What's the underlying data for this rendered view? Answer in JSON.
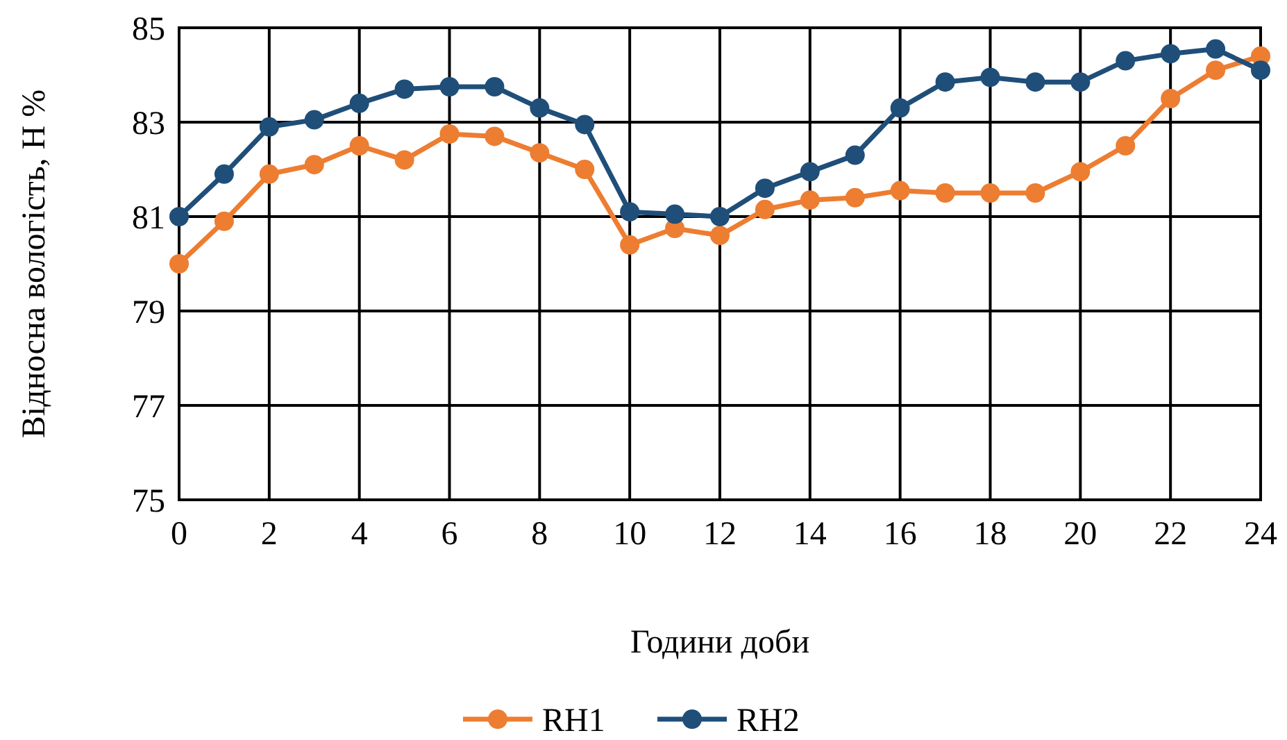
{
  "chart_data": {
    "type": "line",
    "xlabel": "Години доби",
    "ylabel": "Відносна вологість, Н %",
    "x": [
      0,
      1,
      2,
      3,
      4,
      5,
      6,
      7,
      8,
      9,
      10,
      11,
      12,
      13,
      14,
      15,
      16,
      17,
      18,
      19,
      20,
      21,
      22,
      23,
      24
    ],
    "series": [
      {
        "name": "RH1",
        "color": "#ed7d31",
        "values": [
          80.0,
          80.9,
          81.9,
          82.1,
          82.5,
          82.2,
          82.75,
          82.7,
          82.35,
          82.0,
          80.4,
          80.75,
          80.6,
          81.15,
          81.35,
          81.4,
          81.55,
          81.5,
          81.5,
          81.5,
          81.95,
          82.5,
          83.5,
          84.1,
          84.4
        ]
      },
      {
        "name": "RH2",
        "color": "#1f4e79",
        "values": [
          81.0,
          81.9,
          82.9,
          83.05,
          83.4,
          83.7,
          83.75,
          83.75,
          83.3,
          82.95,
          81.1,
          81.05,
          81.0,
          81.6,
          81.95,
          82.3,
          83.3,
          83.85,
          83.95,
          83.85,
          83.85,
          84.3,
          84.45,
          84.55,
          84.1
        ]
      }
    ],
    "xlim": [
      0,
      24
    ],
    "xticks": [
      0,
      2,
      4,
      6,
      8,
      10,
      12,
      14,
      16,
      18,
      20,
      22,
      24
    ],
    "ylim": [
      75,
      85
    ],
    "yticks": [
      75,
      77,
      79,
      81,
      83,
      85
    ],
    "grid": true,
    "legend": "bottom",
    "marker": "circle",
    "line_style": "solid"
  }
}
